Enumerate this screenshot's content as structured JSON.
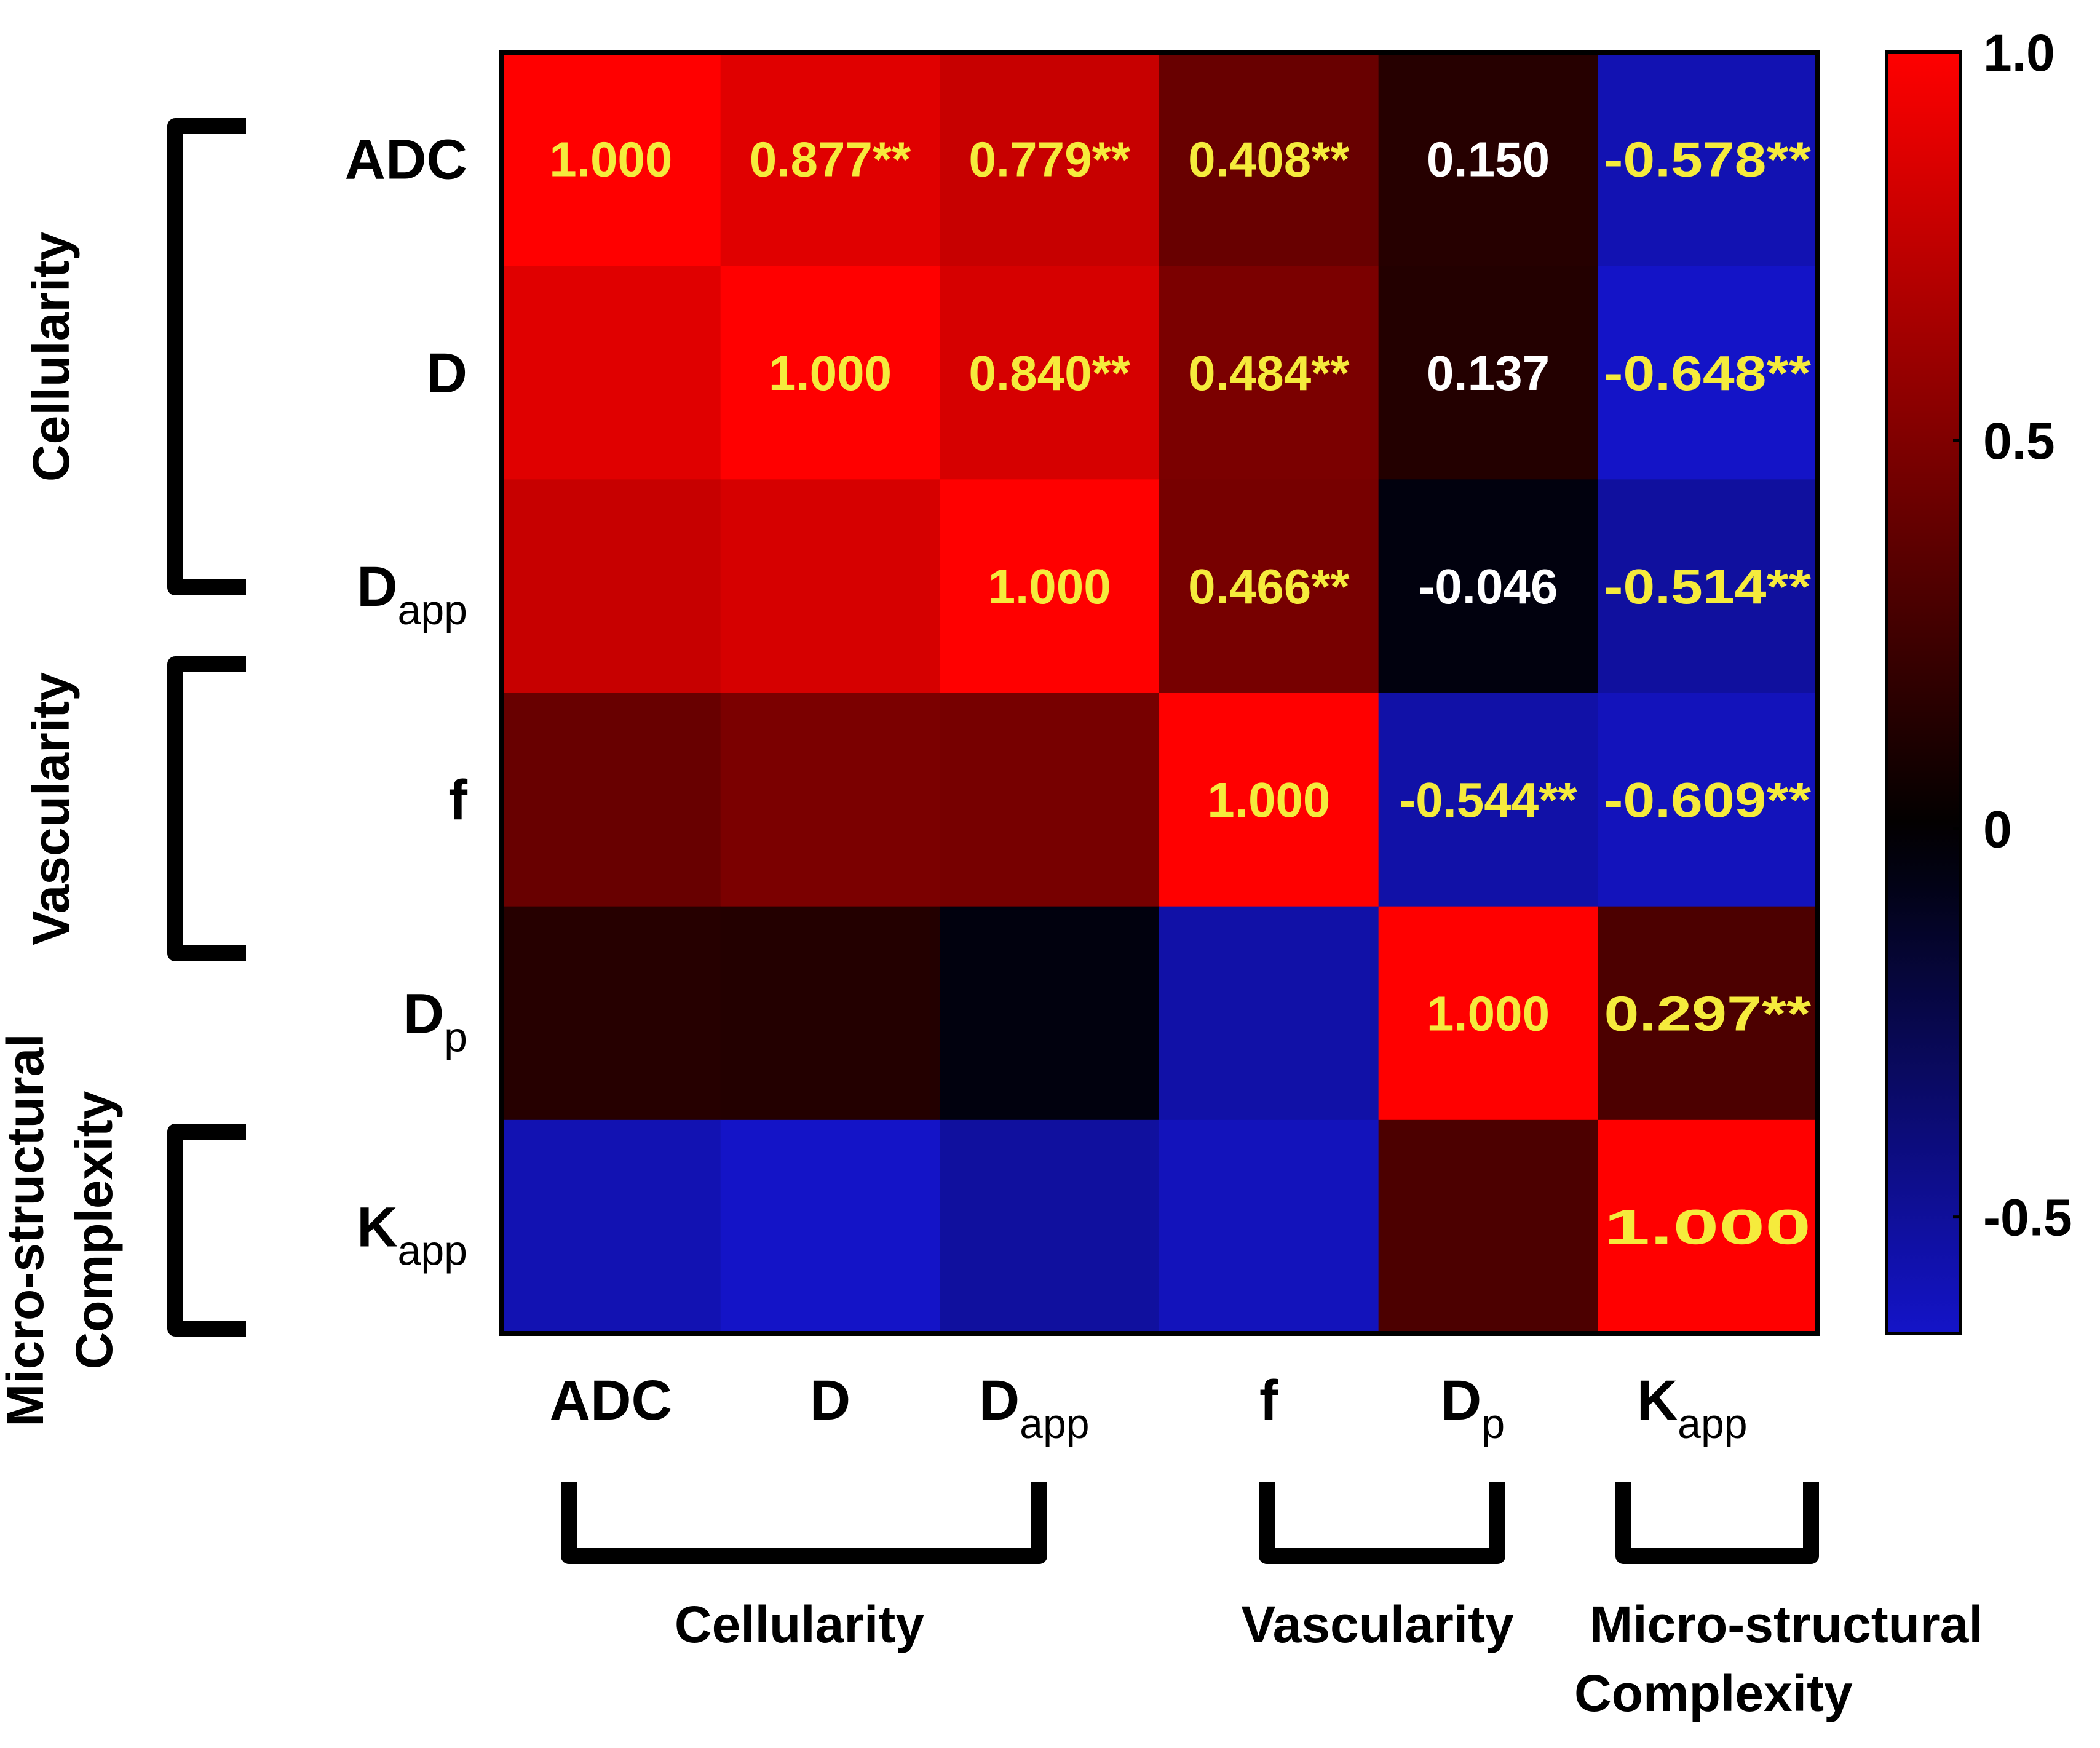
{
  "chart_data": {
    "type": "heatmap",
    "variables": [
      {
        "id": "ADC",
        "base": "ADC",
        "sub": ""
      },
      {
        "id": "D",
        "base": "D",
        "sub": ""
      },
      {
        "id": "Dapp",
        "base": "D",
        "sub": "app"
      },
      {
        "id": "f",
        "base": "f",
        "sub": ""
      },
      {
        "id": "Dp",
        "base": "D",
        "sub": "p"
      },
      {
        "id": "Kapp",
        "base": "K",
        "sub": "app"
      }
    ],
    "matrix": [
      [
        1.0,
        0.877,
        0.779,
        0.408,
        0.15,
        -0.578
      ],
      [
        0.877,
        1.0,
        0.84,
        0.484,
        0.137,
        -0.648
      ],
      [
        0.779,
        0.84,
        1.0,
        0.466,
        -0.046,
        -0.514
      ],
      [
        0.408,
        0.484,
        0.466,
        1.0,
        -0.544,
        -0.609
      ],
      [
        0.15,
        0.137,
        -0.046,
        -0.544,
        1.0,
        0.297
      ],
      [
        -0.578,
        -0.648,
        -0.514,
        -0.609,
        0.297,
        1.0
      ]
    ],
    "cell_labels": [
      [
        "1.000",
        "0.877**",
        "0.779**",
        "0.408**",
        "0.150",
        "-0.578**"
      ],
      [
        "",
        "1.000",
        "0.840**",
        "0.484**",
        "0.137",
        "-0.648**"
      ],
      [
        "",
        "",
        "1.000",
        "0.466**",
        "-0.046",
        "-0.514**"
      ],
      [
        "",
        "",
        "",
        "1.000",
        "-0.544**",
        "-0.609**"
      ],
      [
        "",
        "",
        "",
        "",
        "1.000",
        "0.297**"
      ],
      [
        "",
        "",
        "",
        "",
        "",
        "1.000"
      ]
    ],
    "significant": [
      [
        false,
        true,
        true,
        true,
        false,
        true
      ],
      [
        false,
        false,
        true,
        true,
        false,
        true
      ],
      [
        false,
        false,
        false,
        true,
        false,
        true
      ],
      [
        false,
        false,
        false,
        false,
        true,
        true
      ],
      [
        false,
        false,
        false,
        false,
        false,
        true
      ],
      [
        false,
        false,
        false,
        false,
        false,
        false
      ]
    ],
    "colorbar": {
      "range": [
        -0.65,
        1.0
      ],
      "ticks": [
        1.0,
        0.5,
        0,
        -0.5
      ],
      "tick_labels": [
        "1.0",
        "0.5",
        "0",
        "-0.5"
      ],
      "colors": {
        "low": "#1414c8",
        "mid": "#000000",
        "high": "#ff0000"
      }
    },
    "groups": [
      {
        "name": "Cellularity",
        "lines": [
          "Cellularity"
        ],
        "from": 0,
        "to": 2
      },
      {
        "name": "Vascularity",
        "lines": [
          "Vascularity"
        ],
        "from": 3,
        "to": 4
      },
      {
        "name": "Micro-structural Complexity",
        "lines": [
          "Micro-structural",
          "Complexity"
        ],
        "from": 5,
        "to": 5
      }
    ],
    "label_colors": {
      "significant": "#f5eb3c",
      "nonsignificant": "#ffffff"
    }
  }
}
